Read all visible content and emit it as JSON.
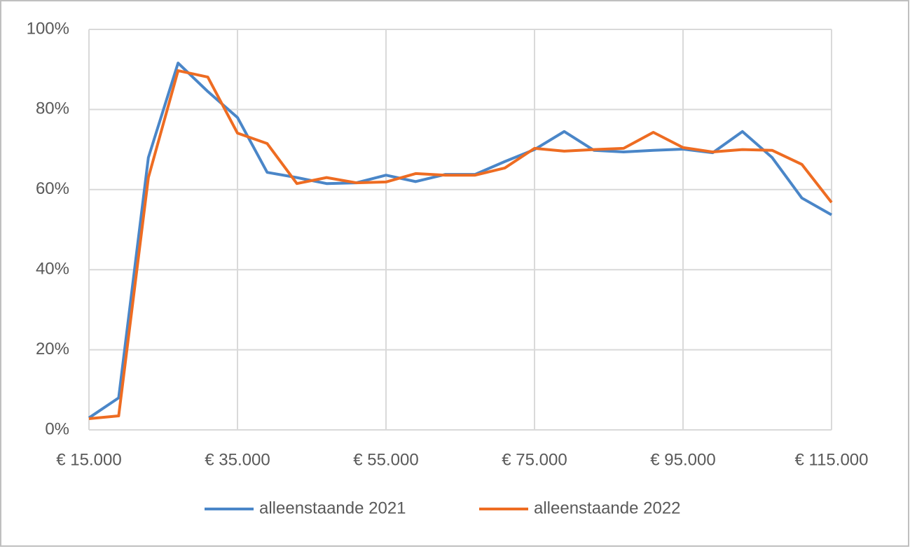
{
  "chart_data": {
    "type": "line",
    "x": [
      15000,
      19000,
      23000,
      27000,
      31000,
      35000,
      39000,
      43000,
      47000,
      51000,
      55000,
      59000,
      63000,
      67000,
      71000,
      75000,
      79000,
      83000,
      87000,
      91000,
      95000,
      99000,
      103000,
      107000,
      111000,
      115000
    ],
    "series": [
      {
        "name": "alleenstaande 2021",
        "color": "#4a86c8",
        "values": [
          3,
          8,
          68,
          91.6,
          84.5,
          78,
          64.3,
          63,
          61.5,
          61.7,
          63.6,
          62,
          63.8,
          63.8,
          67,
          70,
          74.5,
          69.8,
          69.4,
          69.8,
          70.1,
          69.2,
          74.5,
          68,
          57.9,
          53.7
        ]
      },
      {
        "name": "alleenstaande 2022",
        "color": "#ee6c22",
        "values": [
          2.8,
          3.5,
          63,
          89.7,
          88.1,
          74.1,
          71.5,
          61.5,
          63,
          61.7,
          61.9,
          64,
          63.6,
          63.6,
          65.4,
          70.3,
          69.6,
          70,
          70.3,
          74.3,
          70.5,
          69.4,
          70,
          69.8,
          66.3,
          56.8
        ]
      }
    ],
    "xlim": [
      15000,
      115000
    ],
    "xticks": [
      {
        "value": 15000,
        "label": "€ 15.000"
      },
      {
        "value": 35000,
        "label": "€ 35.000"
      },
      {
        "value": 55000,
        "label": "€ 55.000"
      },
      {
        "value": 75000,
        "label": "€ 75.000"
      },
      {
        "value": 95000,
        "label": "€ 95.000"
      },
      {
        "value": 115000,
        "label": "€ 115.000"
      }
    ],
    "ylim": [
      0,
      100
    ],
    "yticks": [
      {
        "value": 0,
        "label": "0%"
      },
      {
        "value": 20,
        "label": "20%"
      },
      {
        "value": 40,
        "label": "40%"
      },
      {
        "value": 60,
        "label": "60%"
      },
      {
        "value": 80,
        "label": "80%"
      },
      {
        "value": 100,
        "label": "100%"
      }
    ],
    "grid": true,
    "legend": "bottom"
  }
}
